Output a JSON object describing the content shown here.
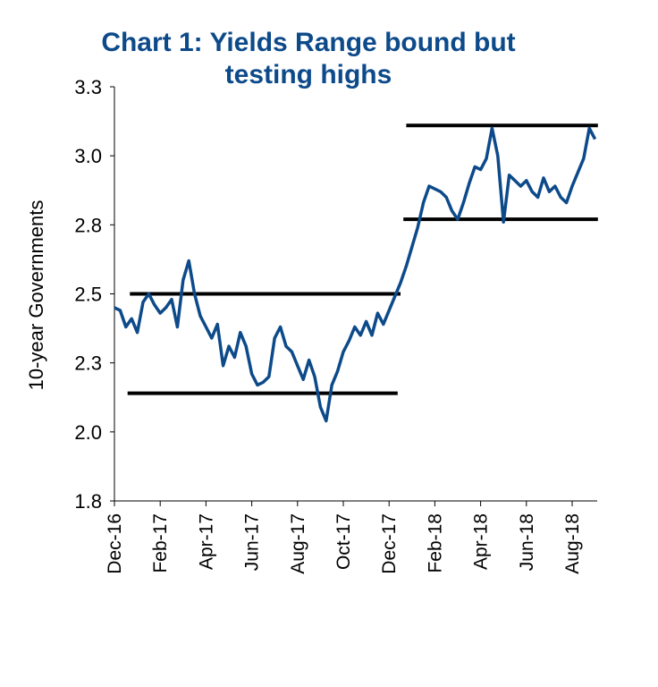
{
  "chart_data": {
    "type": "line",
    "title": "Chart 1: Yields Range bound but testing highs",
    "ylabel": "10-year Governments",
    "categories": [
      "Dec-16",
      null,
      null,
      null,
      null,
      null,
      null,
      null,
      "Feb-17",
      null,
      null,
      null,
      null,
      null,
      null,
      null,
      "Apr-17",
      null,
      null,
      null,
      null,
      null,
      null,
      null,
      "Jun-17",
      null,
      null,
      null,
      null,
      null,
      null,
      null,
      "Aug-17",
      null,
      null,
      null,
      null,
      null,
      null,
      null,
      "Oct-17",
      null,
      null,
      null,
      null,
      null,
      null,
      null,
      "Dec-17",
      null,
      null,
      null,
      null,
      null,
      null,
      null,
      "Feb-18",
      null,
      null,
      null,
      null,
      null,
      null,
      null,
      "Apr-18",
      null,
      null,
      null,
      null,
      null,
      null,
      null,
      "Jun-18",
      null,
      null,
      null,
      null,
      null,
      null,
      null,
      "Aug-18",
      null,
      null,
      null,
      null
    ],
    "series": [
      {
        "name": "10-year Governments",
        "color": "#0d4a8a",
        "values": [
          2.45,
          2.44,
          2.38,
          2.41,
          2.36,
          2.47,
          2.5,
          2.46,
          2.43,
          2.45,
          2.48,
          2.38,
          2.55,
          2.62,
          2.5,
          2.42,
          2.38,
          2.34,
          2.39,
          2.24,
          2.31,
          2.27,
          2.36,
          2.31,
          2.21,
          2.17,
          2.18,
          2.2,
          2.34,
          2.38,
          2.31,
          2.29,
          2.24,
          2.19,
          2.26,
          2.2,
          2.09,
          2.04,
          2.17,
          2.22,
          2.29,
          2.33,
          2.38,
          2.35,
          2.4,
          2.35,
          2.43,
          2.39,
          2.44,
          2.49,
          2.54,
          2.6,
          2.67,
          2.74,
          2.83,
          2.89,
          2.88,
          2.87,
          2.85,
          2.8,
          2.77,
          2.83,
          2.9,
          2.96,
          2.95,
          2.99,
          3.1,
          3.0,
          2.76,
          2.93,
          2.91,
          2.89,
          2.91,
          2.87,
          2.85,
          2.92,
          2.87,
          2.89,
          2.85,
          2.83,
          2.89,
          2.94,
          2.99,
          3.1,
          3.06
        ]
      }
    ],
    "ylim": [
      1.75,
      3.25
    ],
    "yticks": [
      {
        "value": 1.75,
        "label": "1.8"
      },
      {
        "value": 2.0,
        "label": "2.0"
      },
      {
        "value": 2.25,
        "label": "2.3"
      },
      {
        "value": 2.5,
        "label": "2.5"
      },
      {
        "value": 2.75,
        "label": "2.8"
      },
      {
        "value": 3.0,
        "label": "3.0"
      },
      {
        "value": 3.25,
        "label": "3.3"
      }
    ],
    "reference_lines": [
      {
        "y": 2.5,
        "x_start": 2.7,
        "x_end": 50
      },
      {
        "y": 2.14,
        "x_start": 2.3,
        "x_end": 49.5
      },
      {
        "y": 3.11,
        "x_start": 51,
        "x_end": 84.5
      },
      {
        "y": 2.77,
        "x_start": 50.5,
        "x_end": 84.5
      }
    ]
  }
}
